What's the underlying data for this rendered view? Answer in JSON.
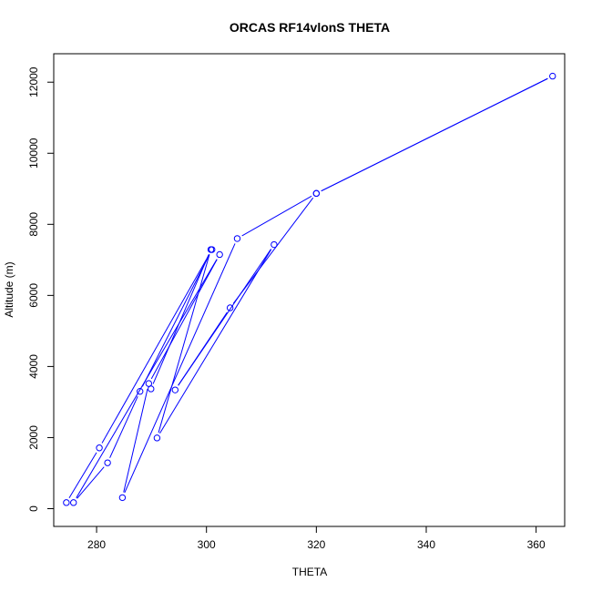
{
  "chart_data": {
    "type": "line",
    "title": "ORCAS RF14vlonS THETA",
    "xlabel": "THETA",
    "ylabel": "Altitude (m)",
    "xlim": [
      272.2,
      365.2
    ],
    "ylim": [
      -500,
      12800
    ],
    "xticks": [
      280,
      300,
      320,
      340,
      360
    ],
    "xtick_labels": [
      "280",
      "300",
      "320",
      "340",
      "360"
    ],
    "yticks": [
      0,
      2000,
      4000,
      6000,
      8000,
      10000,
      12000
    ],
    "ytick_labels": [
      "0",
      "2000",
      "4000",
      "6000",
      "8000",
      "10000",
      "12000"
    ],
    "grid": false,
    "legend": "none",
    "line_color": "#0000ff",
    "series": [
      {
        "style": "line-with-circle-markers",
        "x": [
          274.5,
          280.5,
          301.0,
          287.9,
          282.0,
          275.8,
          302.4,
          289.5,
          284.7,
          305.6,
          320.0,
          363.0,
          320.0,
          304.3,
          294.3,
          312.3,
          291.0,
          300.8,
          289.9
        ],
        "y": [
          170,
          1710,
          7290,
          3300,
          1290,
          170,
          7150,
          3520,
          310,
          7600,
          8870,
          12170,
          8870,
          5650,
          3340,
          7430,
          1990,
          7290,
          3370
        ]
      }
    ]
  }
}
